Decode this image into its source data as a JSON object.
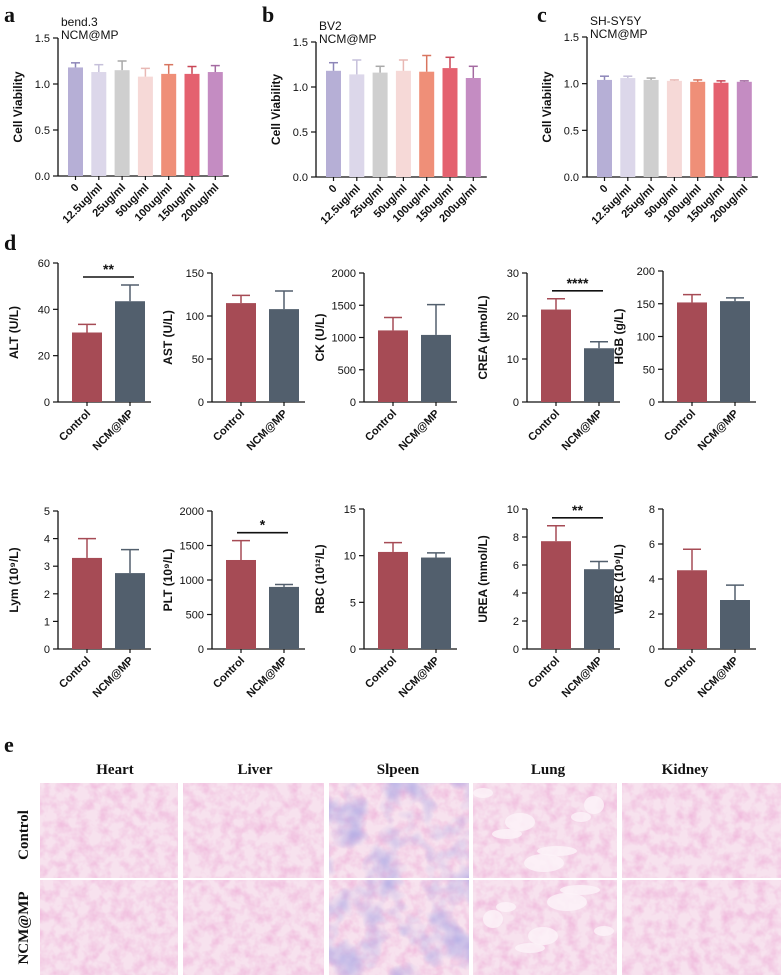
{
  "colors": {
    "control": "#a64b55",
    "ncm": "#525f6d",
    "viability": [
      "#b6afd6",
      "#dcd7ea",
      "#cfcfcf",
      "#f6d9d7",
      "#ef8f78",
      "#e4616f",
      "#c48cc2"
    ],
    "viability_err": [
      "#8d86b8",
      "#c6c0da",
      "#a9a9a9",
      "#e8b8b4",
      "#d8755f",
      "#c94656",
      "#a46aa1"
    ],
    "tissue_pink": "#f0bcd7",
    "tissue_purple": "#a59ad0"
  },
  "panel_labels": {
    "a": "a",
    "b": "b",
    "c": "c",
    "d": "d",
    "e": "e"
  },
  "chart_data": [
    {
      "id": "a",
      "type": "bar",
      "title_lines": [
        "bend.3",
        "NCM@MP"
      ],
      "ylabel": "Cell Viability",
      "ylim": [
        0,
        1.5
      ],
      "yticks": [
        "0.0",
        "0.5",
        "1.0",
        "1.5"
      ],
      "categories": [
        "0",
        "12.5ug/ml",
        "25ug/ml",
        "50ug/ml",
        "100ug/ml",
        "150ug/ml",
        "200ug/ml"
      ],
      "values": [
        1.18,
        1.13,
        1.15,
        1.08,
        1.11,
        1.11,
        1.13
      ],
      "errors": [
        0.05,
        0.08,
        0.1,
        0.09,
        0.1,
        0.08,
        0.07
      ]
    },
    {
      "id": "b",
      "type": "bar",
      "title_lines": [
        "BV2",
        "NCM@MP"
      ],
      "ylabel": "Cell Viability",
      "ylim": [
        0,
        1.5
      ],
      "yticks": [
        "0.0",
        "0.5",
        "1.0",
        "1.5"
      ],
      "categories": [
        "0",
        "12.5ug/ml",
        "25ug/ml",
        "50ug/ml",
        "100ug/ml",
        "150ug/ml",
        "200ug/ml"
      ],
      "values": [
        1.18,
        1.14,
        1.16,
        1.18,
        1.17,
        1.21,
        1.1
      ],
      "errors": [
        0.09,
        0.16,
        0.07,
        0.12,
        0.18,
        0.12,
        0.13
      ]
    },
    {
      "id": "c",
      "type": "bar",
      "title_lines": [
        "SH-SY5Y",
        "NCM@MP"
      ],
      "ylabel": "Cell Viability",
      "ylim": [
        0,
        1.5
      ],
      "yticks": [
        "0.0",
        "0.5",
        "1.0",
        "1.5"
      ],
      "categories": [
        "0",
        "12.5ug/ml",
        "25ug/ml",
        "50ug/ml",
        "100ug/ml",
        "150ug/ml",
        "200ug/ml"
      ],
      "values": [
        1.04,
        1.06,
        1.04,
        1.03,
        1.02,
        1.01,
        1.02
      ],
      "errors": [
        0.04,
        0.02,
        0.02,
        0.01,
        0.02,
        0.02,
        0.01
      ]
    },
    {
      "id": "d-alt",
      "type": "bar",
      "ylabel": "ALT (U/L)",
      "ylim": [
        0,
        60
      ],
      "yticks": [
        "0",
        "20",
        "40",
        "60"
      ],
      "categories": [
        "Control",
        "NCM@MP"
      ],
      "values": [
        30,
        43.5
      ],
      "errors": [
        3.5,
        7
      ],
      "significance": "**"
    },
    {
      "id": "d-ast",
      "type": "bar",
      "ylabel": "AST (U/L)",
      "ylim": [
        0,
        150
      ],
      "yticks": [
        "0",
        "50",
        "100",
        "150"
      ],
      "categories": [
        "Control",
        "NCM@MP"
      ],
      "values": [
        115,
        108
      ],
      "errors": [
        9,
        21
      ],
      "significance": ""
    },
    {
      "id": "d-ck",
      "type": "bar",
      "ylabel": "CK (U/L)",
      "ylim": [
        0,
        2000
      ],
      "yticks": [
        "0",
        "500",
        "1000",
        "1500",
        "2000"
      ],
      "categories": [
        "Control",
        "NCM@MP"
      ],
      "values": [
        1110,
        1040
      ],
      "errors": [
        200,
        470
      ],
      "significance": ""
    },
    {
      "id": "d-crea",
      "type": "bar",
      "ylabel": "CREA (μmol/L)",
      "ylim": [
        0,
        30
      ],
      "yticks": [
        "0",
        "10",
        "20",
        "30"
      ],
      "categories": [
        "Control",
        "NCM@MP"
      ],
      "values": [
        21.5,
        12.5
      ],
      "errors": [
        2.5,
        1.5
      ],
      "significance": "****"
    },
    {
      "id": "d-hgb",
      "type": "bar",
      "ylabel": "HGB (g/L)",
      "ylim": [
        0,
        200
      ],
      "yticks": [
        "0",
        "50",
        "100",
        "150",
        "200"
      ],
      "categories": [
        "Control",
        "NCM@MP"
      ],
      "values": [
        152,
        154
      ],
      "errors": [
        12,
        5
      ],
      "significance": ""
    },
    {
      "id": "d-lym",
      "type": "bar",
      "ylabel": "Lym (10⁹/L)",
      "ylim": [
        0,
        5
      ],
      "yticks": [
        "0",
        "1",
        "2",
        "3",
        "4",
        "5"
      ],
      "categories": [
        "Control",
        "NCM@MP"
      ],
      "values": [
        3.3,
        2.75
      ],
      "errors": [
        0.7,
        0.85
      ],
      "significance": ""
    },
    {
      "id": "d-plt",
      "type": "bar",
      "ylabel": "PLT (10⁹/L)",
      "ylim": [
        0,
        2000
      ],
      "yticks": [
        "0",
        "500",
        "1000",
        "1500",
        "2000"
      ],
      "categories": [
        "Control",
        "NCM@MP"
      ],
      "values": [
        1290,
        900
      ],
      "errors": [
        280,
        35
      ],
      "significance": "*"
    },
    {
      "id": "d-rbc",
      "type": "bar",
      "ylabel": "RBC (10¹²/L)",
      "ylim": [
        0,
        15
      ],
      "yticks": [
        "0",
        "5",
        "10",
        "15"
      ],
      "categories": [
        "Control",
        "NCM@MP"
      ],
      "values": [
        10.4,
        9.8
      ],
      "errors": [
        1.0,
        0.5
      ],
      "significance": ""
    },
    {
      "id": "d-urea",
      "type": "bar",
      "ylabel": "UREA (mmol/L)",
      "ylim": [
        0,
        10
      ],
      "yticks": [
        "0",
        "2",
        "4",
        "6",
        "8",
        "10"
      ],
      "categories": [
        "Control",
        "NCM@MP"
      ],
      "values": [
        7.7,
        5.7
      ],
      "errors": [
        1.1,
        0.55
      ],
      "significance": "**"
    },
    {
      "id": "d-wbc",
      "type": "bar",
      "ylabel": "WBC (10⁹/L)",
      "ylim": [
        0,
        8
      ],
      "yticks": [
        "0",
        "2",
        "4",
        "6",
        "8"
      ],
      "categories": [
        "Control",
        "NCM@MP"
      ],
      "values": [
        4.5,
        2.8
      ],
      "errors": [
        1.2,
        0.85
      ],
      "significance": ""
    }
  ],
  "histology": {
    "organs": [
      "Heart",
      "Liver",
      "Slpeen",
      "Lung",
      "Kidney"
    ],
    "rows": [
      "Control",
      "NCM@MP"
    ]
  }
}
